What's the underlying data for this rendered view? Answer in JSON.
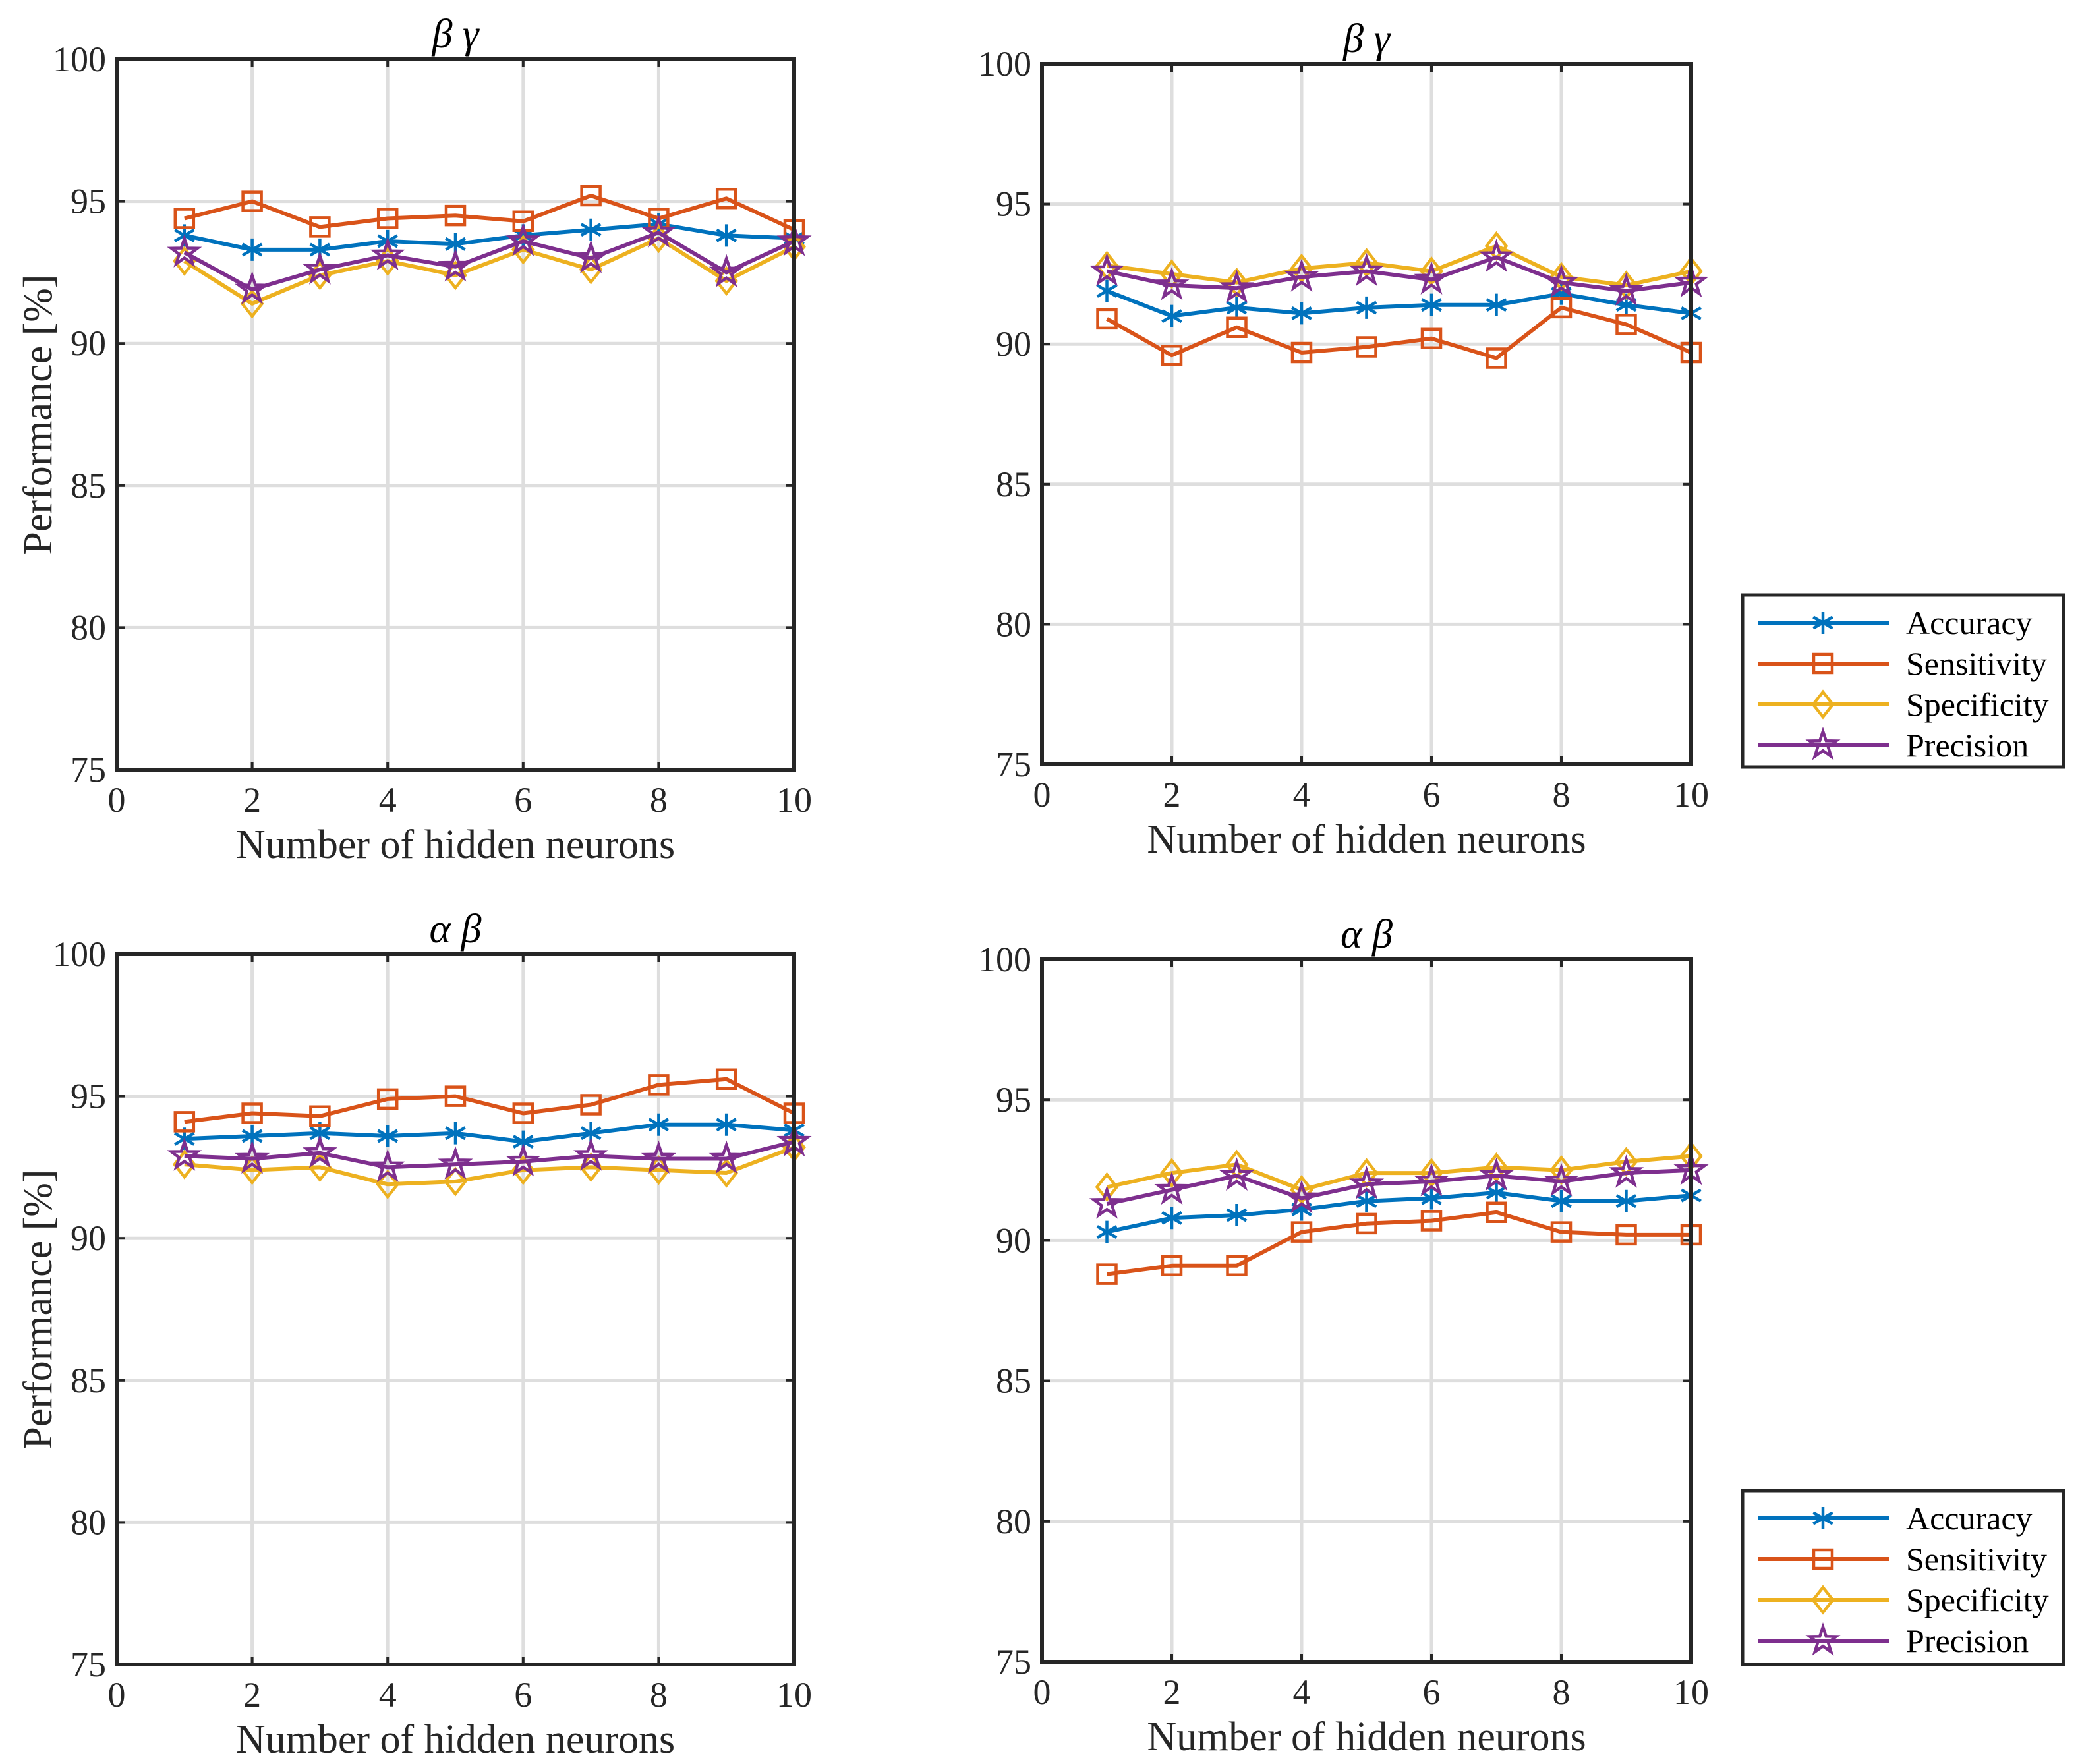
{
  "colors": {
    "background": "#ffffff",
    "axis": "#262626",
    "grid": "#dedede"
  },
  "chart_data": [
    {
      "type": "line",
      "title": "β γ",
      "xlabel": "Number of hidden neurons",
      "ylabel": "Performance [%]",
      "xlim": [
        0,
        10
      ],
      "ylim": [
        75,
        100
      ],
      "xticks": [
        0,
        2,
        4,
        6,
        8,
        10
      ],
      "yticks": [
        75,
        80,
        85,
        90,
        95,
        100
      ],
      "grid": true,
      "legend": "none",
      "x": [
        1,
        2,
        3,
        4,
        5,
        6,
        7,
        8,
        9,
        10
      ],
      "series": [
        {
          "name": "Accuracy",
          "marker": "asterisk",
          "color": "#0072BD",
          "values": [
            93.8,
            93.3,
            93.3,
            93.6,
            93.5,
            93.8,
            94.0,
            94.2,
            93.8,
            93.7
          ]
        },
        {
          "name": "Sensitivity",
          "marker": "square",
          "color": "#D95319",
          "values": [
            94.4,
            95.0,
            94.1,
            94.4,
            94.5,
            94.3,
            95.2,
            94.4,
            95.1,
            94.0
          ]
        },
        {
          "name": "Specificity",
          "marker": "diamond",
          "color": "#EDB120",
          "values": [
            92.9,
            91.4,
            92.4,
            92.9,
            92.4,
            93.3,
            92.6,
            93.7,
            92.2,
            93.4
          ]
        },
        {
          "name": "Precision",
          "marker": "pentagram",
          "color": "#7E2F8E",
          "values": [
            93.2,
            91.9,
            92.6,
            93.1,
            92.7,
            93.6,
            93.0,
            93.9,
            92.5,
            93.6
          ]
        }
      ]
    },
    {
      "type": "line",
      "title": "β γ",
      "xlabel": "Number of hidden neurons",
      "xlim": [
        0,
        10
      ],
      "ylim": [
        75,
        100
      ],
      "xticks": [
        0,
        2,
        4,
        6,
        8,
        10
      ],
      "yticks": [
        75,
        80,
        85,
        90,
        95,
        100
      ],
      "grid": true,
      "legend": "outside-lower-right",
      "x": [
        1,
        2,
        3,
        4,
        5,
        6,
        7,
        8,
        9,
        10
      ],
      "series": [
        {
          "name": "Accuracy",
          "marker": "asterisk",
          "color": "#0072BD",
          "values": [
            91.9,
            91.0,
            91.3,
            91.1,
            91.3,
            91.4,
            91.4,
            91.8,
            91.4,
            91.1
          ]
        },
        {
          "name": "Sensitivity",
          "marker": "square",
          "color": "#D95319",
          "values": [
            90.9,
            89.6,
            90.6,
            89.7,
            89.9,
            90.2,
            89.5,
            91.3,
            90.7,
            89.7
          ]
        },
        {
          "name": "Specificity",
          "marker": "diamond",
          "color": "#EDB120",
          "values": [
            92.8,
            92.5,
            92.2,
            92.7,
            92.9,
            92.6,
            93.5,
            92.4,
            92.1,
            92.6
          ]
        },
        {
          "name": "Precision",
          "marker": "pentagram",
          "color": "#7E2F8E",
          "values": [
            92.6,
            92.1,
            92.0,
            92.4,
            92.6,
            92.3,
            93.1,
            92.2,
            91.9,
            92.2
          ]
        }
      ]
    },
    {
      "type": "line",
      "title": "α β",
      "xlabel": "Number of hidden neurons",
      "ylabel": "Performance [%]",
      "xlim": [
        0,
        10
      ],
      "ylim": [
        75,
        100
      ],
      "xticks": [
        0,
        2,
        4,
        6,
        8,
        10
      ],
      "yticks": [
        75,
        80,
        85,
        90,
        95,
        100
      ],
      "grid": true,
      "legend": "none",
      "x": [
        1,
        2,
        3,
        4,
        5,
        6,
        7,
        8,
        9,
        10
      ],
      "series": [
        {
          "name": "Accuracy",
          "marker": "asterisk",
          "color": "#0072BD",
          "values": [
            93.5,
            93.6,
            93.7,
            93.6,
            93.7,
            93.4,
            93.7,
            94.0,
            94.0,
            93.8
          ]
        },
        {
          "name": "Sensitivity",
          "marker": "square",
          "color": "#D95319",
          "values": [
            94.1,
            94.4,
            94.3,
            94.9,
            95.0,
            94.4,
            94.7,
            95.4,
            95.6,
            94.4
          ]
        },
        {
          "name": "Specificity",
          "marker": "diamond",
          "color": "#EDB120",
          "values": [
            92.6,
            92.4,
            92.5,
            91.9,
            92.0,
            92.4,
            92.5,
            92.4,
            92.3,
            93.2
          ]
        },
        {
          "name": "Precision",
          "marker": "pentagram",
          "color": "#7E2F8E",
          "values": [
            92.9,
            92.8,
            93.0,
            92.5,
            92.6,
            92.7,
            92.9,
            92.8,
            92.8,
            93.4
          ]
        }
      ]
    },
    {
      "type": "line",
      "title": "α β",
      "xlabel": "Number of hidden neurons",
      "xlim": [
        0,
        10
      ],
      "ylim": [
        75,
        100
      ],
      "xticks": [
        0,
        2,
        4,
        6,
        8,
        10
      ],
      "yticks": [
        75,
        80,
        85,
        90,
        95,
        100
      ],
      "grid": true,
      "legend": "outside-lower-right",
      "x": [
        1,
        2,
        3,
        4,
        5,
        6,
        7,
        8,
        9,
        10
      ],
      "series": [
        {
          "name": "Accuracy",
          "marker": "asterisk",
          "color": "#0072BD",
          "values": [
            90.3,
            90.8,
            90.9,
            91.1,
            91.4,
            91.5,
            91.7,
            91.4,
            91.4,
            91.6
          ]
        },
        {
          "name": "Sensitivity",
          "marker": "square",
          "color": "#D95319",
          "values": [
            88.8,
            89.1,
            89.1,
            90.3,
            90.6,
            90.7,
            91.0,
            90.3,
            90.2,
            90.2
          ]
        },
        {
          "name": "Specificity",
          "marker": "diamond",
          "color": "#EDB120",
          "values": [
            91.9,
            92.4,
            92.7,
            91.8,
            92.4,
            92.4,
            92.6,
            92.5,
            92.8,
            93.0
          ]
        },
        {
          "name": "Precision",
          "marker": "pentagram",
          "color": "#7E2F8E",
          "values": [
            91.3,
            91.8,
            92.3,
            91.5,
            92.0,
            92.1,
            92.3,
            92.1,
            92.4,
            92.5
          ]
        }
      ]
    }
  ]
}
